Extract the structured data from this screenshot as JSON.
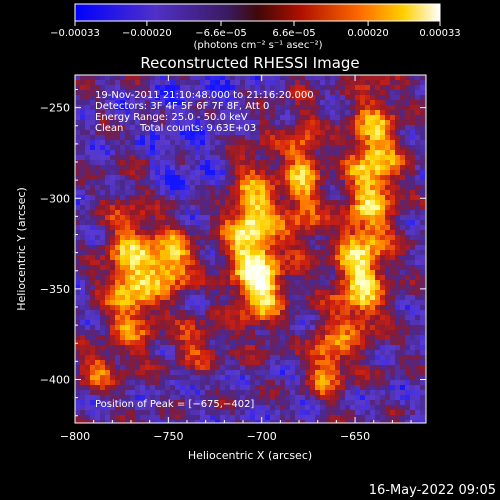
{
  "colorbar": {
    "tick_labels": [
      "−0.00033",
      "−0.00020",
      "−6.6e−05",
      "6.6e−05",
      "0.00020",
      "0.00033"
    ],
    "tick_values": [
      -0.00033,
      -0.0002,
      -6.6e-05,
      6.6e-05,
      0.0002,
      0.00033
    ],
    "range": [
      -0.00033,
      0.00033
    ],
    "unit_label": "(photons cm⁻² s⁻¹ asec⁻²)"
  },
  "chart_data": {
    "type": "heatmap",
    "title": "Reconstructed RHESSI Image",
    "xlabel": "Heliocentric X (arcsec)",
    "ylabel": "Heliocentric Y (arcsec)",
    "xlim": [
      -800,
      -612
    ],
    "ylim": [
      -424,
      -232
    ],
    "x_ticks": [
      -800,
      -750,
      -700,
      -650
    ],
    "x_tick_labels": [
      "−800",
      "−750",
      "−700",
      "−650"
    ],
    "y_ticks": [
      -250,
      -300,
      -350,
      -400
    ],
    "y_tick_labels": [
      "−250",
      "−300",
      "−350",
      "−400"
    ],
    "annotations": [
      "19-Nov-2011 21:10:48.000 to 21:16:20.000",
      "Detectors: 3F 4F 5F 6F 7F 8F, Att 0",
      "Energy Range: 25.0 - 50.0 keV",
      "Clean",
      "Total counts: 9.63E+03"
    ],
    "peak_label": "Position of Peak = [−675,−402]",
    "peak_position": [
      -675,
      -402
    ],
    "colormap": [
      "#1414ff",
      "#5a3ad0",
      "#4a2890",
      "#8a1a30",
      "#d02010",
      "#ff7a00",
      "#ffd000",
      "#ffffa0",
      "#ffffff"
    ]
  },
  "footer": {
    "timestamp": "16-May-2022 09:05"
  }
}
